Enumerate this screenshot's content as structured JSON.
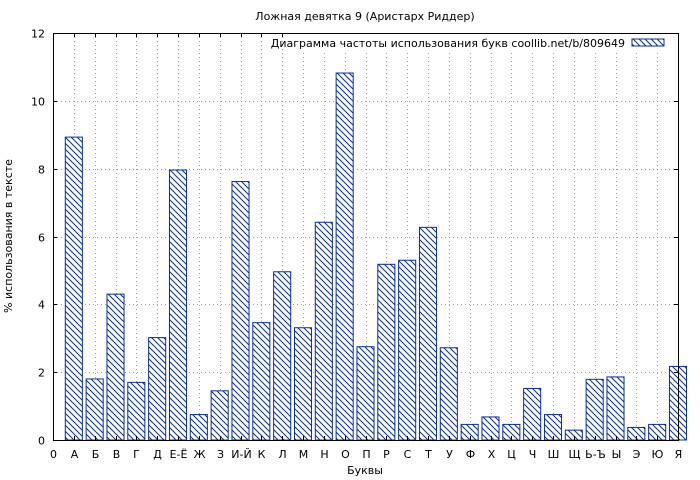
{
  "chart_data": {
    "type": "bar",
    "title": "Ложная девятка  9 (Аристарх Риддер)",
    "xlabel": "Буквы",
    "ylabel": "% использования в тексте",
    "ylim": [
      0,
      12
    ],
    "yticks": [
      0,
      2,
      4,
      6,
      8,
      10,
      12
    ],
    "grid": true,
    "legend_position": "top-right",
    "bar_color": "#0a2e9c",
    "x_ticks": [
      "0",
      "А",
      "Б",
      "В",
      "Г",
      "Д",
      "Е-Ё",
      "Ж",
      "З",
      "И-Й",
      "К",
      "Л",
      "М",
      "Н",
      "О",
      "П",
      "Р",
      "С",
      "Т",
      "У",
      "Ф",
      "Х",
      "Ц",
      "Ч",
      "Ш",
      "Щ",
      "Ь-Ъ",
      "Ы",
      "Э",
      "Ю",
      "Я"
    ],
    "categories": [
      "А",
      "Б",
      "В",
      "Г",
      "Д",
      "Е-Ё",
      "Ж",
      "З",
      "И-Й",
      "К",
      "Л",
      "М",
      "Н",
      "О",
      "П",
      "Р",
      "С",
      "Т",
      "У",
      "Ф",
      "Х",
      "Ц",
      "Ч",
      "Ш",
      "Щ",
      "Ь-Ъ",
      "Ы",
      "Э",
      "Ю",
      "Я"
    ],
    "series": [
      {
        "name": "Диаграмма частоты использования букв coollib.net/b/809649",
        "values": [
          8.93,
          1.8,
          4.3,
          1.7,
          3.02,
          7.96,
          0.75,
          1.45,
          7.62,
          3.46,
          4.96,
          3.31,
          6.42,
          10.82,
          2.75,
          5.18,
          5.3,
          6.27,
          2.72,
          0.46,
          0.68,
          0.46,
          1.52,
          0.75,
          0.29,
          1.79,
          1.86,
          0.37,
          0.46,
          2.17
        ]
      }
    ]
  }
}
